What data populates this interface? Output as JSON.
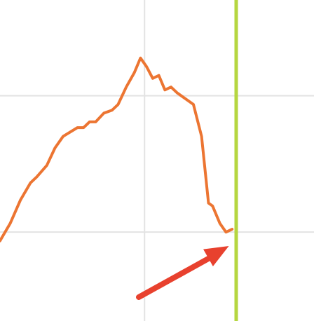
{
  "chart_data": {
    "type": "line",
    "title": "",
    "xlabel": "",
    "ylabel": "",
    "grid": true,
    "legend": "none",
    "colors": {
      "grid": "#e3e3e3",
      "line": "#ec7532",
      "marker": "#b5d640",
      "arrow": "#e8412e"
    },
    "series": [
      {
        "values": [
          [
            0,
            0.6
          ],
          [
            0.25,
            0.66
          ],
          [
            0.5,
            0.74
          ],
          [
            0.75,
            0.8
          ],
          [
            0.9,
            0.82
          ],
          [
            1.15,
            0.86
          ],
          [
            1.35,
            0.92
          ],
          [
            1.55,
            0.96
          ],
          [
            1.9,
            0.99
          ],
          [
            2.05,
            0.99
          ],
          [
            2.2,
            1.01
          ],
          [
            2.35,
            1.01
          ],
          [
            2.55,
            1.04
          ],
          [
            2.75,
            1.05
          ],
          [
            2.9,
            1.07
          ],
          [
            3.1,
            1.13
          ],
          [
            3.3,
            1.18
          ],
          [
            3.45,
            1.23
          ],
          [
            3.6,
            1.2
          ],
          [
            3.75,
            1.16
          ],
          [
            3.9,
            1.17
          ],
          [
            4.05,
            1.12
          ],
          [
            4.2,
            1.13
          ],
          [
            4.35,
            1.11
          ],
          [
            4.55,
            1.09
          ],
          [
            4.75,
            1.07
          ],
          [
            4.95,
            0.96
          ],
          [
            5.12,
            0.73
          ],
          [
            5.22,
            0.72
          ],
          [
            5.4,
            0.66
          ],
          [
            5.55,
            0.63
          ],
          [
            5.7,
            0.64
          ]
        ]
      }
    ],
    "xgrid": [
      3.55
    ],
    "ygrid": [
      1.1,
      0.63
    ],
    "vertical_marker": 5.8,
    "arrow_target": 5.62
  }
}
